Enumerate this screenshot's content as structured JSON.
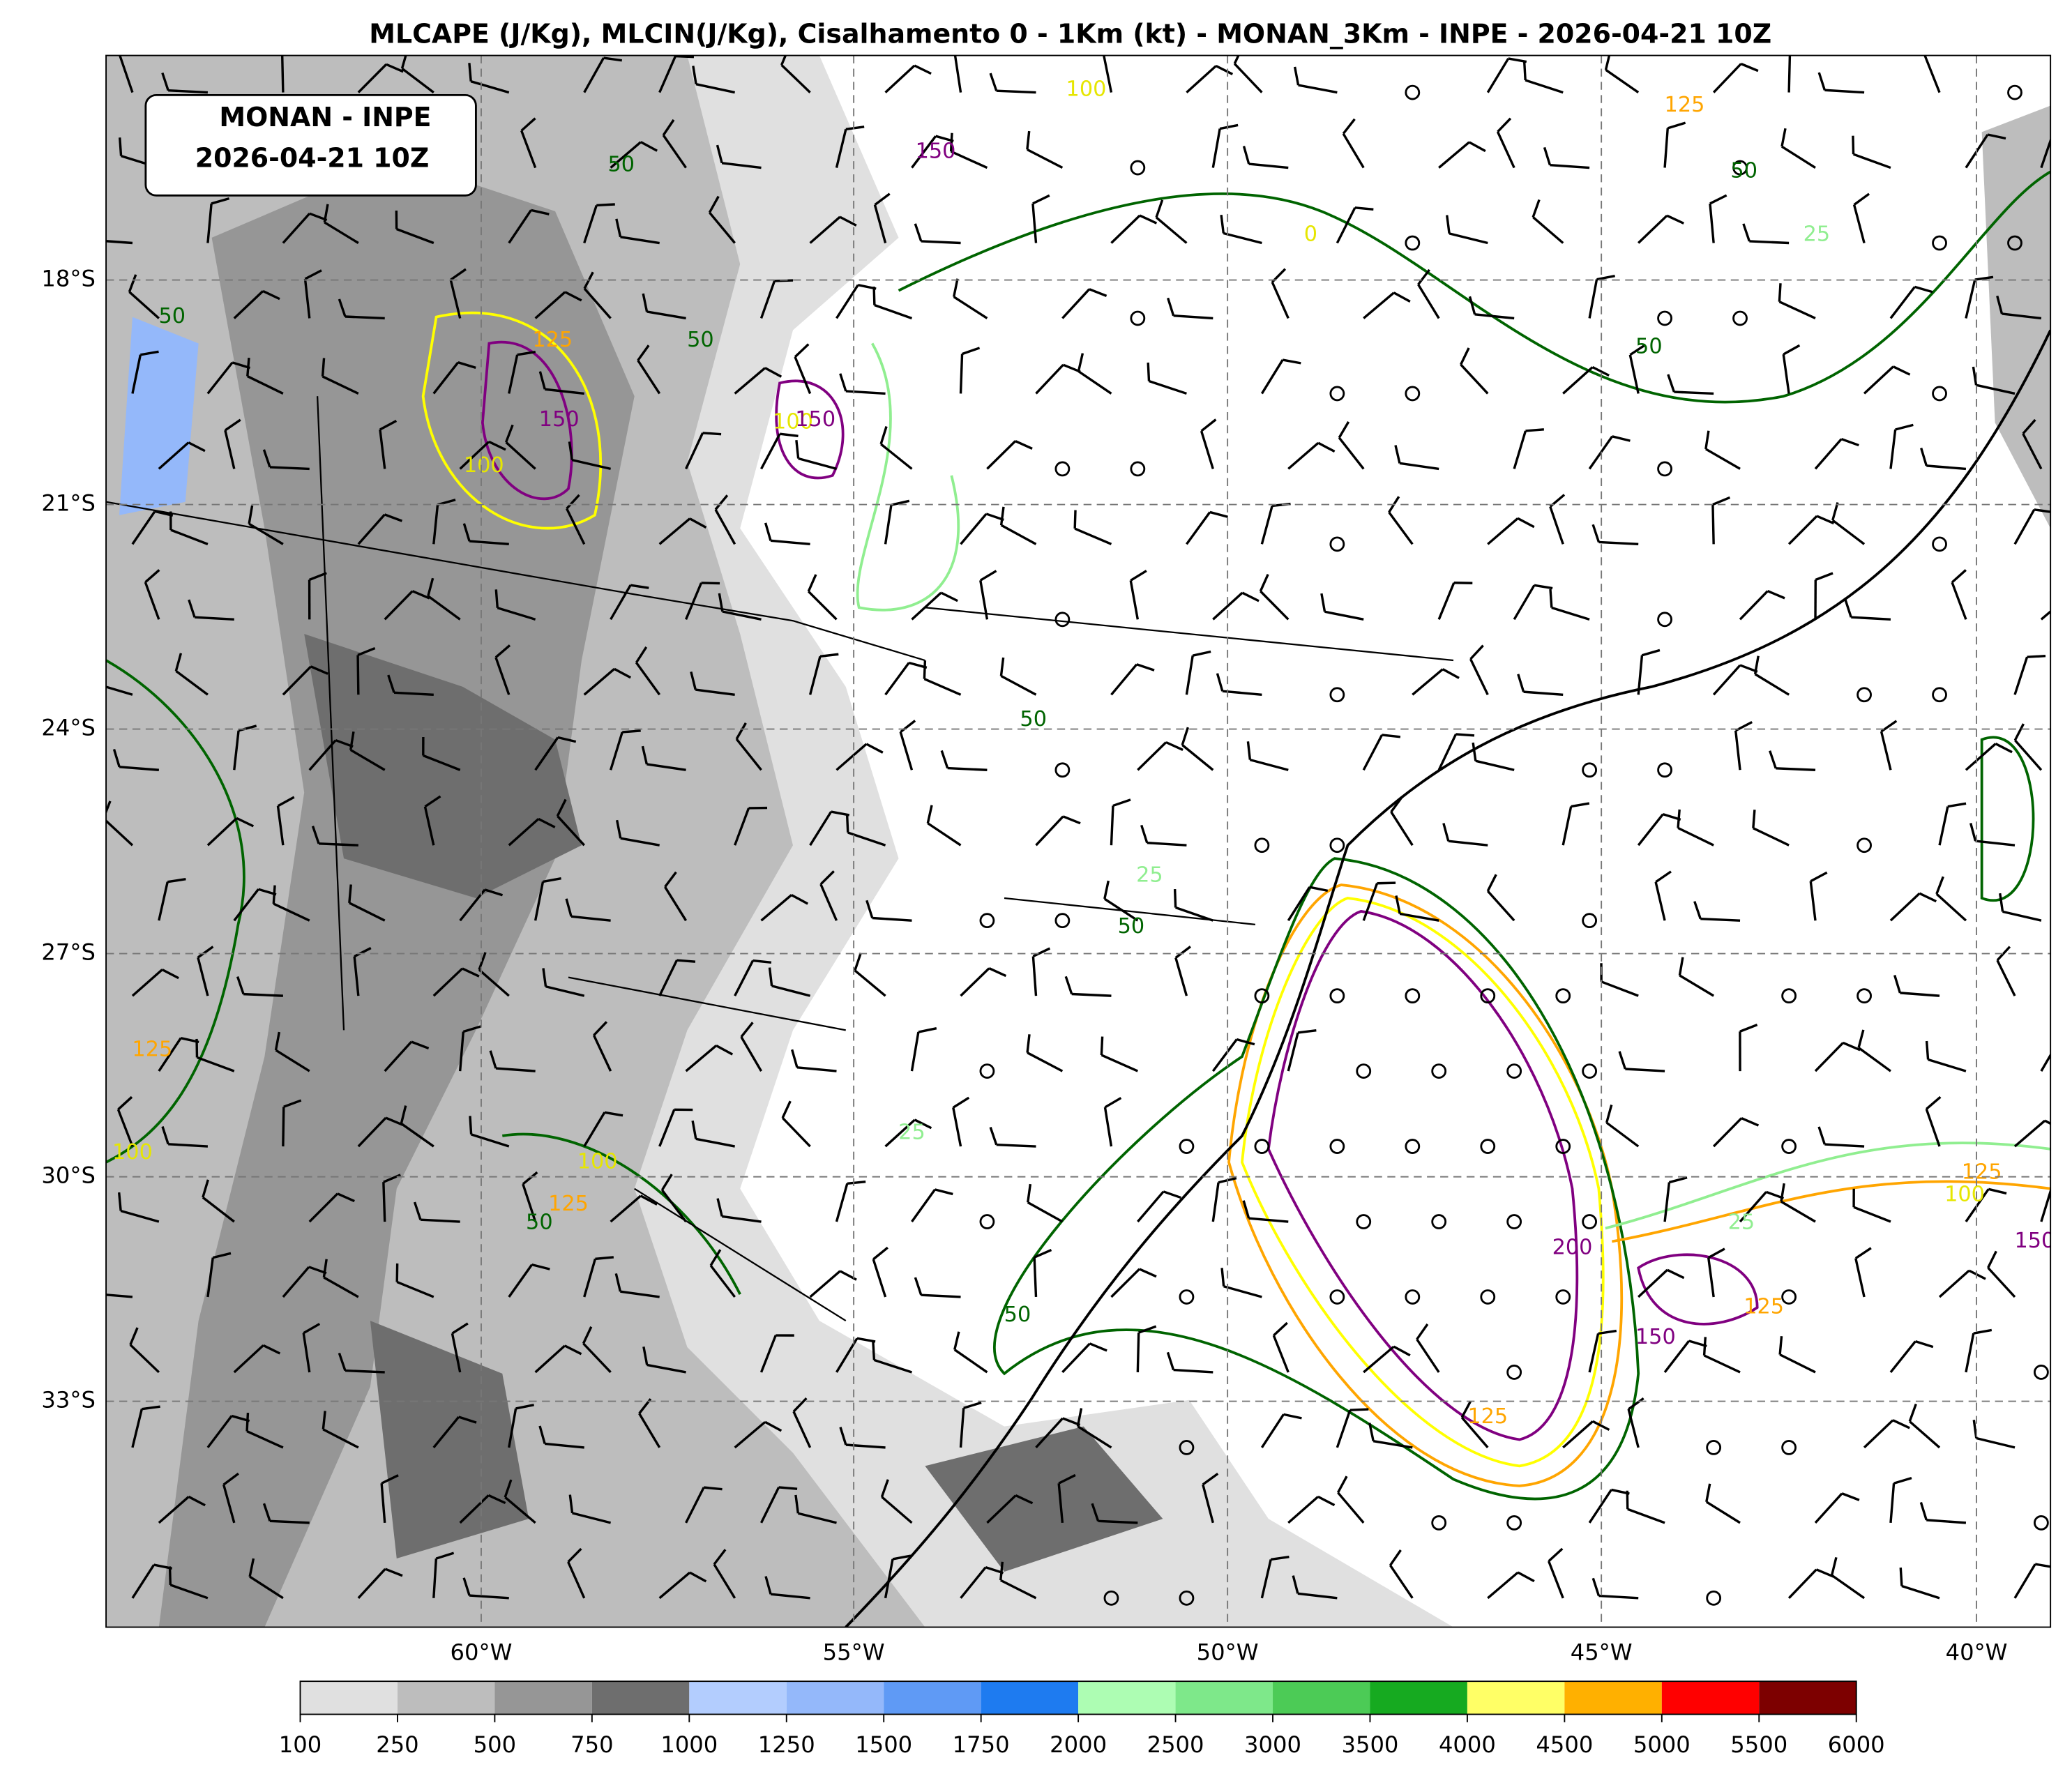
{
  "title": "MLCAPE (J/Kg), MLCIN(J/Kg), Cisalhamento 0 - 1Km (kt) - MONAN_3Km - INPE - 2026-04-21 10Z",
  "info_box": [
    "MONAN - INPE",
    "2026-04-21 10Z"
  ],
  "map": {
    "lat_ticks": [
      "18°S",
      "21°S",
      "24°S",
      "27°S",
      "30°S",
      "33°S"
    ],
    "lon_ticks": [
      "60°W",
      "55°W",
      "50°W",
      "45°W",
      "40°W"
    ],
    "contour_labels": [
      "50",
      "125",
      "150",
      "100",
      "50",
      "100",
      "150",
      "150",
      "100",
      "0",
      "125",
      "50",
      "25",
      "50",
      "50",
      "50",
      "25",
      "50",
      "125",
      "100",
      "100",
      "125",
      "50",
      "50",
      "200",
      "150",
      "125",
      "25",
      "125",
      "150",
      "100",
      "125",
      "25"
    ]
  },
  "colorbar": {
    "ticks": [
      100,
      250,
      500,
      750,
      1000,
      1250,
      1500,
      1750,
      2000,
      2500,
      3000,
      3500,
      4000,
      4500,
      5000,
      5500,
      6000
    ],
    "colors": [
      "#e0e0e0",
      "#bdbdbd",
      "#969696",
      "#6e6e6e",
      "#b3cdfe",
      "#94b8fa",
      "#5f9af5",
      "#1e7bf0",
      "#adfdb3",
      "#7ee88a",
      "#4ccb56",
      "#16aa20",
      "#ffff66",
      "#ffb000",
      "#ff0000",
      "#7d0000"
    ]
  }
}
